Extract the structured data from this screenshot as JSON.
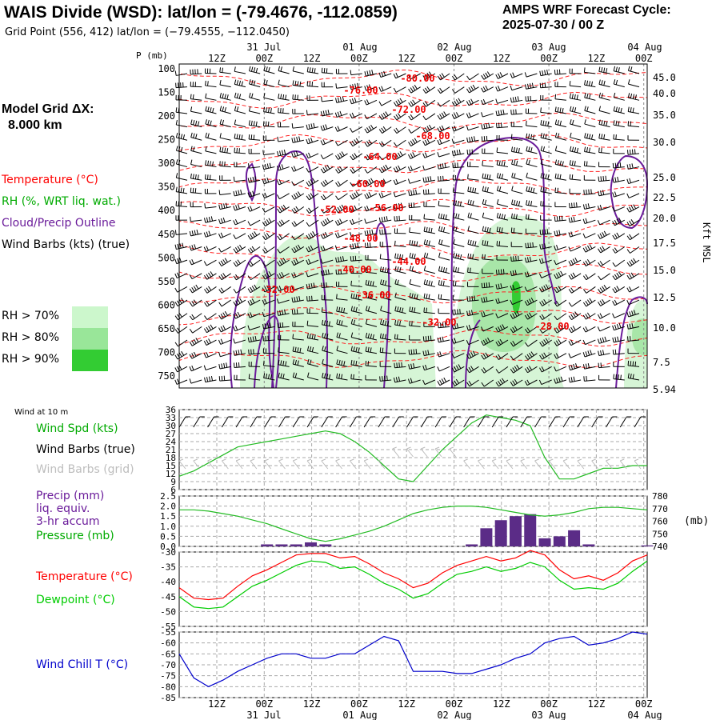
{
  "header": {
    "title": "WAIS Divide (WSD):  lat/lon = (-79.4676, -112.0859)",
    "subtitle": "Grid Point (556, 412) lat/lon = (−79.4555, −112.0450)",
    "cycle_line1": "AMPS WRF Forecast Cycle:",
    "cycle_line2": "2025-07-30 / 00  Z"
  },
  "model": {
    "grid_label": "Model Grid ΔX:",
    "grid_value": "8.000 km"
  },
  "colors": {
    "temperature": "#ff0000",
    "rh": "#00aa00",
    "cloud": "#6a1b9a",
    "precip_bar": "#5b2c87",
    "dewpoint": "#00cc00",
    "windchill": "#0000cc",
    "rh70": "#ccf7cc",
    "rh80": "#99e699",
    "rh90": "#33cc33"
  },
  "legend_upper": {
    "temperature": "Temperature (°C)",
    "rh": "RH (%, WRT liq. wat.)",
    "cloud": "Cloud/Precip Outline",
    "wind": "Wind Barbs (kts) (true)",
    "rh_levels": [
      "RH > 70%",
      "RH > 80%",
      "RH > 90%"
    ]
  },
  "time_axis": {
    "top_ticks": [
      "12Z",
      "00Z",
      "12Z",
      "00Z",
      "12Z",
      "00Z",
      "12Z",
      "00Z",
      "12Z",
      "00Z"
    ],
    "dates": [
      "31 Jul",
      "01 Aug",
      "02 Aug",
      "03 Aug",
      "04 Aug"
    ]
  },
  "cross_section": {
    "p_label": "P (mb)",
    "pressure_ticks": [
      "100",
      "150",
      "200",
      "250",
      "300",
      "350",
      "400",
      "450",
      "500",
      "550",
      "600",
      "650",
      "700",
      "750"
    ],
    "height_ticks": [
      "45.0",
      "40.0",
      "35.0",
      "30.0",
      "25.0",
      "22.5",
      "20.0",
      "17.5",
      "15.0",
      "12.5",
      "10.0",
      "7.5",
      "5.94"
    ],
    "height_label": "Kft MSL",
    "temp_labels": [
      "-80.00",
      "-76.00",
      "-72.00",
      "-68.00",
      "-64.00",
      "-60.00",
      "-56.00",
      "-52.00",
      "-48.00",
      "-44.00",
      "-40.00",
      "-36.00",
      "-32.00",
      "-32.00",
      "-28.00"
    ]
  },
  "panel_wind": {
    "title": "Wind at 10 m",
    "labels": [
      "Wind Spd (kts)",
      "Wind Barbs (true)",
      "Wind Barbs (grid)"
    ],
    "yticks": [
      "36",
      "33",
      "30",
      "27",
      "24",
      "21",
      "18",
      "15",
      "12",
      "9",
      "6"
    ]
  },
  "panel_precip": {
    "labels": [
      "Precip (mm)",
      "liq. equiv.",
      "3-hr accum",
      "Pressure (mb)"
    ],
    "yticks_left": [
      "2.5",
      "2.0",
      "1.5",
      "1.0",
      "0.5",
      "0.0"
    ],
    "yticks_right": [
      "780",
      "770",
      "760",
      "750",
      "740"
    ],
    "right_unit": "(mb)"
  },
  "panel_temp": {
    "labels": [
      "Temperature (°C)",
      "Dewpoint (°C)"
    ],
    "yticks": [
      "-30",
      "-35",
      "-40",
      "-45",
      "-50",
      "-55"
    ]
  },
  "panel_wc": {
    "label": "Wind Chill T (°C)",
    "yticks": [
      "-55",
      "-60",
      "-65",
      "-70",
      "-75",
      "-80",
      "-85"
    ]
  },
  "chart_data": [
    {
      "type": "line",
      "title": "Wind at 10 m",
      "x": [
        0,
        3,
        6,
        9,
        12,
        15,
        18,
        21,
        24,
        27,
        30,
        33,
        36,
        39,
        42,
        45,
        48,
        51,
        54,
        57,
        60,
        63,
        66,
        69,
        72,
        75,
        78,
        81,
        84,
        87,
        90,
        93,
        96
      ],
      "series": [
        {
          "name": "Wind Spd (kts)",
          "values": [
            11,
            13,
            16,
            19,
            22,
            23,
            24,
            25,
            26,
            27,
            28,
            27,
            24,
            20,
            15,
            10,
            9,
            15,
            21,
            26,
            31,
            34,
            33,
            32,
            30,
            18,
            10,
            10,
            12,
            14,
            14,
            15,
            15
          ]
        }
      ],
      "ylim": [
        6,
        36
      ]
    },
    {
      "type": "bar",
      "title": "Precip / Pressure",
      "x": [
        0,
        3,
        6,
        9,
        12,
        15,
        18,
        21,
        24,
        27,
        30,
        33,
        36,
        39,
        42,
        45,
        48,
        51,
        54,
        57,
        60,
        63,
        66,
        69,
        72,
        75,
        78,
        81,
        84,
        87,
        90,
        93,
        96
      ],
      "series": [
        {
          "name": "Precip (mm)",
          "values": [
            0,
            0,
            0,
            0,
            0,
            0,
            0.1,
            0.1,
            0.1,
            0.2,
            0.1,
            0,
            0,
            0,
            0,
            0,
            0,
            0,
            0,
            0,
            0.1,
            0.9,
            1.3,
            1.5,
            1.6,
            0.4,
            0.5,
            0.8,
            0.1,
            0,
            0,
            0,
            0.05
          ]
        },
        {
          "name": "Pressure (mb)",
          "values": [
            769,
            769,
            768,
            766,
            764,
            761,
            758,
            754,
            750,
            746,
            744,
            746,
            749,
            752,
            756,
            761,
            766,
            769,
            771,
            772,
            772,
            771,
            769,
            767,
            765,
            764,
            765,
            767,
            770,
            771,
            771,
            770,
            769
          ]
        }
      ],
      "ylim": [
        0,
        2.5
      ],
      "y2lim": [
        740,
        780
      ]
    },
    {
      "type": "line",
      "title": "Temperature / Dewpoint",
      "x": [
        0,
        3,
        6,
        9,
        12,
        15,
        18,
        21,
        24,
        27,
        30,
        33,
        36,
        39,
        42,
        45,
        48,
        51,
        54,
        57,
        60,
        63,
        66,
        69,
        72,
        75,
        78,
        81,
        84,
        87,
        90,
        93,
        96
      ],
      "series": [
        {
          "name": "Temperature (°C)",
          "values": [
            -42,
            -45.5,
            -46,
            -45.5,
            -41.5,
            -38,
            -36,
            -33.5,
            -31,
            -30.5,
            -30.5,
            -32,
            -31.5,
            -34,
            -37,
            -39,
            -42,
            -40.5,
            -37,
            -34.5,
            -33,
            -31.5,
            -33,
            -32,
            -29.5,
            -31,
            -36,
            -39,
            -38,
            -39.5,
            -37,
            -33,
            -31
          ]
        },
        {
          "name": "Dewpoint (°C)",
          "values": [
            -45,
            -48.5,
            -49,
            -48.5,
            -45,
            -41.5,
            -39.5,
            -37,
            -34.5,
            -33,
            -33.5,
            -35.5,
            -35,
            -37.5,
            -40.5,
            -42.5,
            -45.5,
            -44,
            -40.5,
            -37.5,
            -36.5,
            -35,
            -36.5,
            -35.5,
            -33.5,
            -35,
            -39.5,
            -42.5,
            -42,
            -42.5,
            -40.5,
            -36.5,
            -33
          ]
        }
      ],
      "ylim": [
        -55,
        -30
      ]
    },
    {
      "type": "line",
      "title": "Wind Chill T",
      "x": [
        0,
        3,
        6,
        9,
        12,
        15,
        18,
        21,
        24,
        27,
        30,
        33,
        36,
        39,
        42,
        45,
        48,
        51,
        54,
        57,
        60,
        63,
        66,
        69,
        72,
        75,
        78,
        81,
        84,
        87,
        90,
        93,
        96
      ],
      "series": [
        {
          "name": "Wind Chill T (°C)",
          "values": [
            -65,
            -76,
            -80,
            -77,
            -73,
            -70,
            -67,
            -65,
            -65,
            -67,
            -67,
            -65,
            -65,
            -61,
            -57,
            -59,
            -73,
            -73,
            -73,
            -74,
            -74,
            -72,
            -70,
            -67,
            -65,
            -60,
            -58,
            -57,
            -61,
            -60,
            -58,
            -55,
            -56
          ]
        }
      ],
      "ylim": [
        -85,
        -55
      ]
    }
  ]
}
